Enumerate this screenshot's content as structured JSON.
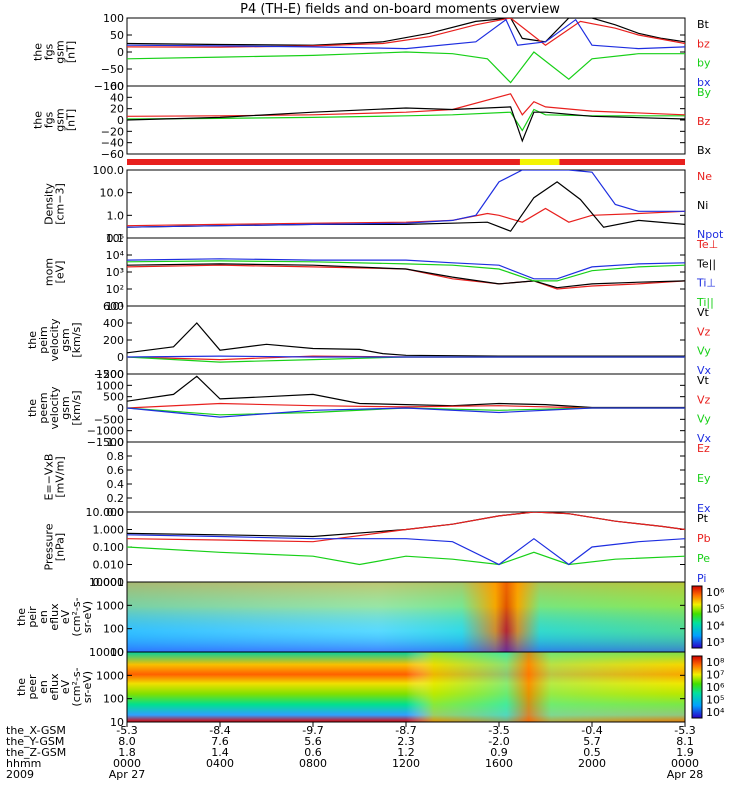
{
  "title": "P4 (TH-E) fields and on-board moments overview",
  "colors": {
    "black": "#000000",
    "red": "#e8201e",
    "green": "#18d018",
    "blue": "#1e2ee0",
    "yellow": "#f4f400"
  },
  "panels": [
    {
      "ylabel": [
        "the",
        "fgs",
        "gsm",
        "[nT]"
      ],
      "ticks": [
        "100",
        "50",
        "0",
        "−50",
        "−100"
      ],
      "ylim": [
        -100,
        100
      ],
      "legend": [
        {
          "label": "Bt",
          "color": "black"
        },
        {
          "label": "bz",
          "color": "red"
        },
        {
          "label": "by",
          "color": "green"
        },
        {
          "label": "bx",
          "color": "blue"
        }
      ]
    },
    {
      "ylabel": [
        "the",
        "fgs",
        "gsm",
        "[nT]"
      ],
      "ticks": [
        "60",
        "40",
        "20",
        "0",
        "−20",
        "−40",
        "−60"
      ],
      "ylim": [
        -70,
        60
      ],
      "legend": [
        {
          "label": "By",
          "color": "green"
        },
        {
          "label": "Bz",
          "color": "red"
        },
        {
          "label": "Bx",
          "color": "black"
        }
      ]
    },
    {
      "ylabel": [
        "Density",
        "[cm−3]"
      ],
      "ticks": [
        "100.0",
        "10.0",
        "1.0",
        "0.1"
      ],
      "ylim": [
        0.1,
        100
      ],
      "scale": "log",
      "legend": [
        {
          "label": "Ne",
          "color": "red"
        },
        {
          "label": "Ni",
          "color": "black"
        },
        {
          "label": "Npot",
          "color": "blue"
        }
      ]
    },
    {
      "ylabel": [
        "mom",
        "[eV]"
      ],
      "ticks": [
        "10⁵",
        "10⁴",
        "10³",
        "10²",
        "10¹"
      ],
      "ylim": [
        10,
        100000
      ],
      "scale": "log",
      "legend": [
        {
          "label": "Te⊥",
          "color": "red"
        },
        {
          "label": "Te||",
          "color": "black"
        },
        {
          "label": "Ti⊥",
          "color": "blue"
        },
        {
          "label": "Ti||",
          "color": "green"
        }
      ]
    },
    {
      "ylabel": [
        "the",
        "peim",
        "velocity",
        "gsm",
        "[km/s]"
      ],
      "ticks": [
        "600",
        "400",
        "200",
        "0",
        "−200"
      ],
      "ylim": [
        -200,
        600
      ],
      "legend": [
        {
          "label": "Vt",
          "color": "black"
        },
        {
          "label": "Vz",
          "color": "red"
        },
        {
          "label": "Vy",
          "color": "green"
        },
        {
          "label": "Vx",
          "color": "blue"
        }
      ]
    },
    {
      "ylabel": [
        "the",
        "peem",
        "velocity",
        "gsm",
        "[km/s]"
      ],
      "ticks": [
        "1500",
        "1000",
        "500",
        "0",
        "−500",
        "−1000",
        "−1500"
      ],
      "ylim": [
        -1500,
        1500
      ],
      "legend": [
        {
          "label": "Vt",
          "color": "black"
        },
        {
          "label": "Vz",
          "color": "red"
        },
        {
          "label": "Vy",
          "color": "green"
        },
        {
          "label": "Vx",
          "color": "blue"
        }
      ]
    },
    {
      "ylabel": [
        "E=−VxB",
        "[mV/m]"
      ],
      "ticks": [
        "1.0",
        "0.8",
        "0.6",
        "0.4",
        "0.2",
        "0.0"
      ],
      "ylim": [
        0,
        1
      ],
      "legend": [
        {
          "label": "Ez",
          "color": "red"
        },
        {
          "label": "Ey",
          "color": "green"
        },
        {
          "label": "Ex",
          "color": "blue"
        }
      ]
    },
    {
      "ylabel": [
        "Pressure",
        "[nPa]"
      ],
      "ticks": [
        "10.000",
        "1.000",
        "0.100",
        "0.010",
        "0.001"
      ],
      "ylim": [
        0.001,
        10
      ],
      "scale": "log",
      "legend": [
        {
          "label": "Pt",
          "color": "black"
        },
        {
          "label": "Pb",
          "color": "red"
        },
        {
          "label": "Pe",
          "color": "green"
        },
        {
          "label": "Pi",
          "color": "blue"
        }
      ]
    },
    {
      "ylabel": [
        "the",
        "peir",
        "en",
        "eflux",
        "eV",
        "(cm²-s-",
        "sr-eV)"
      ],
      "ticks": [
        "10000",
        "1000",
        "100",
        "10"
      ],
      "colorbar_ticks": [
        "10⁶",
        "10⁵",
        "10⁴",
        "10³"
      ]
    },
    {
      "ylabel": [
        "the",
        "peer",
        "en",
        "eflux",
        "eV",
        "(cm²-s-",
        "sr-eV)"
      ],
      "ticks": [
        "10000",
        "1000",
        "100",
        "10"
      ],
      "colorbar_ticks": [
        "10⁸",
        "10⁷",
        "10⁶",
        "10⁵",
        "10⁴"
      ]
    }
  ],
  "x_axis": {
    "row_labels": [
      "the_X-GSM",
      "the_Y-GSM",
      "the_Z-GSM",
      "hhmm",
      "2009"
    ],
    "columns": [
      [
        "-5.3",
        "8.0",
        "1.8",
        "0000",
        "Apr 27"
      ],
      [
        "-8.4",
        "7.6",
        "1.4",
        "0400",
        ""
      ],
      [
        "-9.7",
        "5.6",
        "0.6",
        "0800",
        ""
      ],
      [
        "-8.7",
        "2.3",
        "1.2",
        "1200",
        ""
      ],
      [
        "-3.5",
        "-2.0",
        "0.9",
        "1600",
        ""
      ],
      [
        "-0.4",
        "5.7",
        "0.5",
        "2000",
        ""
      ],
      [
        "-5.3",
        "8.1",
        "1.9",
        "0000",
        "Apr 28"
      ]
    ]
  },
  "chart_data": [
    {
      "type": "line",
      "title": "P4 (TH-E) fields and on-board moments overview",
      "x_unit": "hours since 2009-04-27 00:00",
      "series": [
        {
          "name": "Bt",
          "x": [
            0,
            4,
            8,
            11,
            13,
            15,
            16.5,
            17,
            18,
            19,
            20,
            21,
            22,
            23,
            24
          ],
          "values": [
            25,
            22,
            20,
            30,
            55,
            90,
            120,
            40,
            30,
            130,
            110,
            80,
            55,
            40,
            30
          ]
        },
        {
          "name": "bz",
          "x": [
            0,
            4,
            8,
            11,
            13,
            15,
            16.5,
            18,
            19.5,
            21,
            22,
            24
          ],
          "values": [
            15,
            14,
            18,
            25,
            45,
            80,
            110,
            20,
            90,
            70,
            50,
            25
          ]
        },
        {
          "name": "by",
          "x": [
            0,
            4,
            8,
            10,
            12,
            14,
            15.5,
            16.5,
            17.5,
            19,
            20,
            22,
            24
          ],
          "values": [
            -20,
            -15,
            -10,
            -5,
            0,
            -5,
            -20,
            -90,
            0,
            -80,
            -20,
            -5,
            -5
          ]
        },
        {
          "name": "bx",
          "x": [
            0,
            4,
            8,
            12,
            15,
            16.3,
            16.8,
            18,
            19.3,
            20,
            22,
            24
          ],
          "values": [
            20,
            18,
            15,
            10,
            30,
            95,
            20,
            30,
            95,
            20,
            10,
            15
          ]
        }
      ]
    },
    {
      "type": "line",
      "series": [
        {
          "name": "By",
          "x": [
            0,
            4,
            8,
            12,
            14,
            16.5,
            17.0,
            17.5,
            18,
            20,
            24
          ],
          "values": [
            -3,
            -2,
            0,
            3,
            5,
            10,
            -25,
            15,
            5,
            3,
            3
          ]
        },
        {
          "name": "Bz",
          "x": [
            0,
            4,
            8,
            12,
            14,
            16.5,
            17.0,
            17.5,
            18,
            20,
            24
          ],
          "values": [
            2,
            3,
            5,
            10,
            15,
            45,
            5,
            30,
            20,
            12,
            5
          ]
        },
        {
          "name": "Bx",
          "x": [
            0,
            4,
            8,
            12,
            14,
            16.5,
            17.0,
            17.5,
            18,
            20,
            24
          ],
          "values": [
            -5,
            0,
            10,
            18,
            15,
            20,
            -45,
            10,
            10,
            2,
            -3
          ]
        }
      ]
    },
    {
      "type": "line",
      "scale": "log",
      "series": [
        {
          "name": "Ne",
          "x": [
            0,
            4,
            8,
            12,
            14,
            15.5,
            16,
            17,
            18,
            19,
            20,
            22,
            24
          ],
          "values": [
            0.35,
            0.4,
            0.45,
            0.5,
            0.6,
            1.2,
            1.0,
            0.5,
            2.0,
            0.5,
            1.0,
            1.2,
            1.5
          ]
        },
        {
          "name": "Ni",
          "x": [
            0,
            4,
            8,
            12,
            14,
            15.5,
            16.5,
            17.5,
            18.5,
            19.5,
            20.5,
            22,
            24
          ],
          "values": [
            0.3,
            0.35,
            0.4,
            0.4,
            0.45,
            0.5,
            0.2,
            6.0,
            30.0,
            5.0,
            0.3,
            0.6,
            0.4
          ]
        },
        {
          "name": "Npot",
          "x": [
            0,
            4,
            8,
            12,
            14,
            15,
            16,
            17,
            19,
            20,
            21,
            22,
            24
          ],
          "values": [
            0.3,
            0.35,
            0.4,
            0.45,
            0.6,
            1.0,
            30,
            100,
            100,
            80,
            3,
            1.5,
            1.5
          ]
        }
      ]
    },
    {
      "type": "line",
      "scale": "log",
      "series": [
        {
          "name": "Te⊥",
          "x": [
            0,
            4,
            8,
            12,
            14,
            16,
            17.5,
            18.5,
            20,
            22,
            24
          ],
          "values": [
            2000,
            2500,
            2000,
            1500,
            400,
            200,
            300,
            100,
            150,
            200,
            300
          ]
        },
        {
          "name": "Te||",
          "x": [
            0,
            4,
            8,
            12,
            14,
            16,
            17.5,
            18.5,
            20,
            22,
            24
          ],
          "values": [
            2500,
            3000,
            2500,
            1500,
            500,
            200,
            300,
            120,
            200,
            250,
            300
          ]
        },
        {
          "name": "Ti⊥",
          "x": [
            0,
            4,
            8,
            12,
            14,
            16,
            17.5,
            18.5,
            20,
            22,
            24
          ],
          "values": [
            5000,
            6000,
            5000,
            5000,
            3500,
            2500,
            400,
            400,
            2000,
            3000,
            3500
          ]
        },
        {
          "name": "Ti||",
          "x": [
            0,
            4,
            8,
            12,
            14,
            16,
            17.5,
            18.5,
            20,
            22,
            24
          ],
          "values": [
            4000,
            4500,
            4000,
            3000,
            2500,
            1500,
            300,
            300,
            1200,
            2000,
            2500
          ]
        }
      ]
    },
    {
      "type": "line",
      "series": [
        {
          "name": "Vt",
          "x": [
            0,
            2,
            3,
            4,
            6,
            8,
            10,
            11,
            12,
            14,
            16,
            18,
            20,
            22,
            24
          ],
          "values": [
            50,
            120,
            400,
            80,
            150,
            100,
            90,
            40,
            20,
            15,
            10,
            10,
            10,
            10,
            10
          ]
        },
        {
          "name": "Vz",
          "x": [
            0,
            4,
            8,
            12,
            16,
            20,
            24
          ],
          "values": [
            0,
            -30,
            10,
            0,
            0,
            0,
            0
          ]
        },
        {
          "name": "Vy",
          "x": [
            0,
            4,
            8,
            12,
            16,
            20,
            24
          ],
          "values": [
            0,
            -60,
            -30,
            0,
            0,
            0,
            0
          ]
        },
        {
          "name": "Vx",
          "x": [
            0,
            4,
            8,
            12,
            16,
            20,
            24
          ],
          "values": [
            0,
            10,
            0,
            0,
            0,
            0,
            0
          ]
        }
      ]
    },
    {
      "type": "line",
      "series": [
        {
          "name": "Vt",
          "x": [
            0,
            2,
            3,
            4,
            6,
            8,
            10,
            12,
            14,
            16,
            18,
            20,
            24
          ],
          "values": [
            300,
            600,
            1400,
            400,
            500,
            600,
            200,
            150,
            100,
            200,
            150,
            20,
            20
          ]
        },
        {
          "name": "Vz",
          "x": [
            0,
            4,
            8,
            12,
            16,
            20,
            24
          ],
          "values": [
            0,
            200,
            100,
            50,
            100,
            0,
            0
          ]
        },
        {
          "name": "Vy",
          "x": [
            0,
            4,
            8,
            12,
            16,
            20,
            24
          ],
          "values": [
            0,
            -300,
            -200,
            0,
            -100,
            0,
            0
          ]
        },
        {
          "name": "Vx",
          "x": [
            0,
            4,
            8,
            12,
            16,
            20,
            24
          ],
          "values": [
            0,
            -400,
            -100,
            0,
            -200,
            0,
            0
          ]
        }
      ]
    },
    {
      "type": "line",
      "series": [
        {
          "name": "Ez",
          "x": [],
          "values": []
        },
        {
          "name": "Ey",
          "x": [],
          "values": []
        },
        {
          "name": "Ex",
          "x": [],
          "values": []
        }
      ]
    },
    {
      "type": "line",
      "scale": "log",
      "series": [
        {
          "name": "Pt",
          "x": [
            0,
            4,
            8,
            12,
            14,
            16,
            17.5,
            19,
            21,
            23,
            24
          ],
          "values": [
            0.6,
            0.5,
            0.4,
            1.0,
            2.0,
            6.0,
            12.0,
            8.0,
            3.0,
            1.5,
            1.0
          ]
        },
        {
          "name": "Pb",
          "x": [
            0,
            4,
            8,
            12,
            14,
            16,
            17.5,
            19,
            21,
            23,
            24
          ],
          "values": [
            0.3,
            0.25,
            0.2,
            1.0,
            2.0,
            6.0,
            12.0,
            8.0,
            3.0,
            1.5,
            1.0
          ]
        },
        {
          "name": "Pe",
          "x": [
            0,
            4,
            8,
            10,
            12,
            14,
            16,
            17.5,
            19,
            21,
            24
          ],
          "values": [
            0.1,
            0.05,
            0.03,
            0.01,
            0.03,
            0.02,
            0.01,
            0.05,
            0.01,
            0.02,
            0.03
          ]
        },
        {
          "name": "Pi",
          "x": [
            0,
            4,
            8,
            12,
            14,
            16,
            17.5,
            19,
            20,
            22,
            24
          ],
          "values": [
            0.5,
            0.4,
            0.3,
            0.3,
            0.2,
            0.01,
            0.3,
            0.01,
            0.1,
            0.2,
            0.3
          ]
        }
      ]
    },
    {
      "type": "heatmap",
      "ylim": [
        10,
        10000
      ],
      "scale": "log"
    },
    {
      "type": "heatmap",
      "ylim": [
        10,
        10000
      ],
      "scale": "log"
    }
  ]
}
